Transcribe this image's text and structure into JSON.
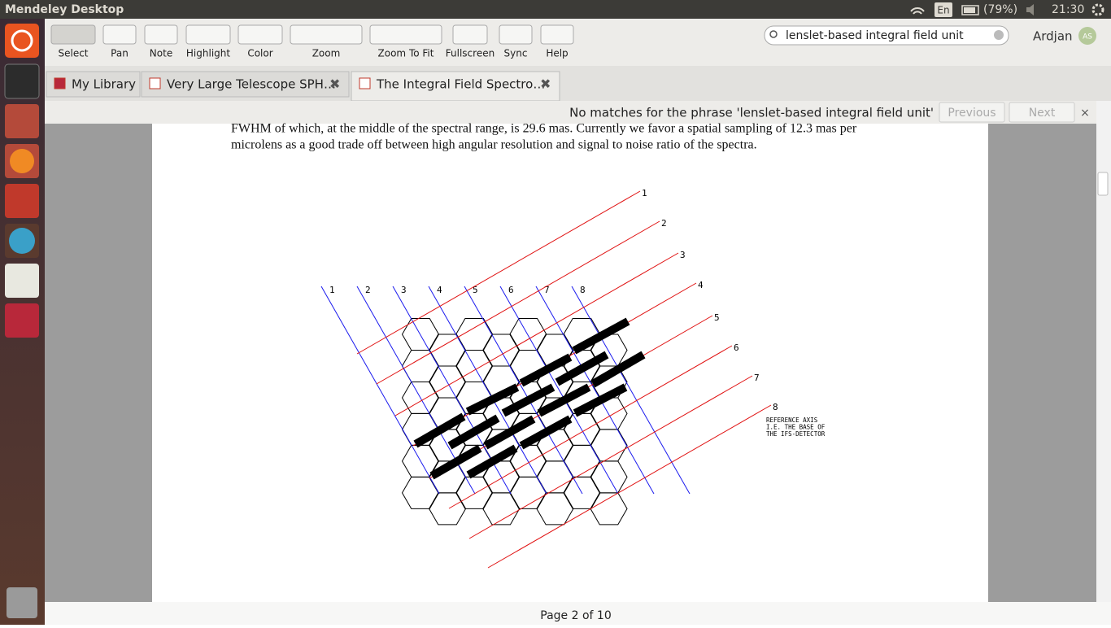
{
  "top_bar": {
    "app_title": "Mendeley Desktop",
    "keyboard": "En",
    "battery": "(79%)",
    "clock": "21:30"
  },
  "toolbar": {
    "buttons": [
      "Select",
      "Pan",
      "Note",
      "Highlight",
      "Color",
      "Zoom",
      "Zoom To Fit",
      "Fullscreen",
      "Sync",
      "Help"
    ],
    "search": "lenslet-based integral field unit",
    "user": "Ardjan",
    "avatar": "AS"
  },
  "tabs": [
    "My Library",
    "Very Large Telescope SPH…",
    "The Integral Field Spectro…"
  ],
  "find_bar": {
    "message": "No matches for the phrase 'lenslet-based integral field unit'",
    "previous": "Previous",
    "next": "Next"
  },
  "document": {
    "lines": [
      "FWHM of which, at the middle of the spectral range, is 29.6 mas. Currently we favor a spatial sampling of 12.3 mas per",
      "microlens as a good trade off between high angular resolution and signal to noise ratio of the spectra."
    ],
    "figure": {
      "blue_labels": [
        "1",
        "2",
        "3",
        "4",
        "5",
        "6",
        "7",
        "8"
      ],
      "red_labels": [
        "1",
        "2",
        "3",
        "4",
        "5",
        "6",
        "7",
        "8"
      ],
      "reference_note": [
        "REFERENCE AXIS",
        "I.E. THE BASE OF",
        "THE IFS-DETECTOR"
      ]
    }
  },
  "status": {
    "page": "Page 2 of 10"
  }
}
